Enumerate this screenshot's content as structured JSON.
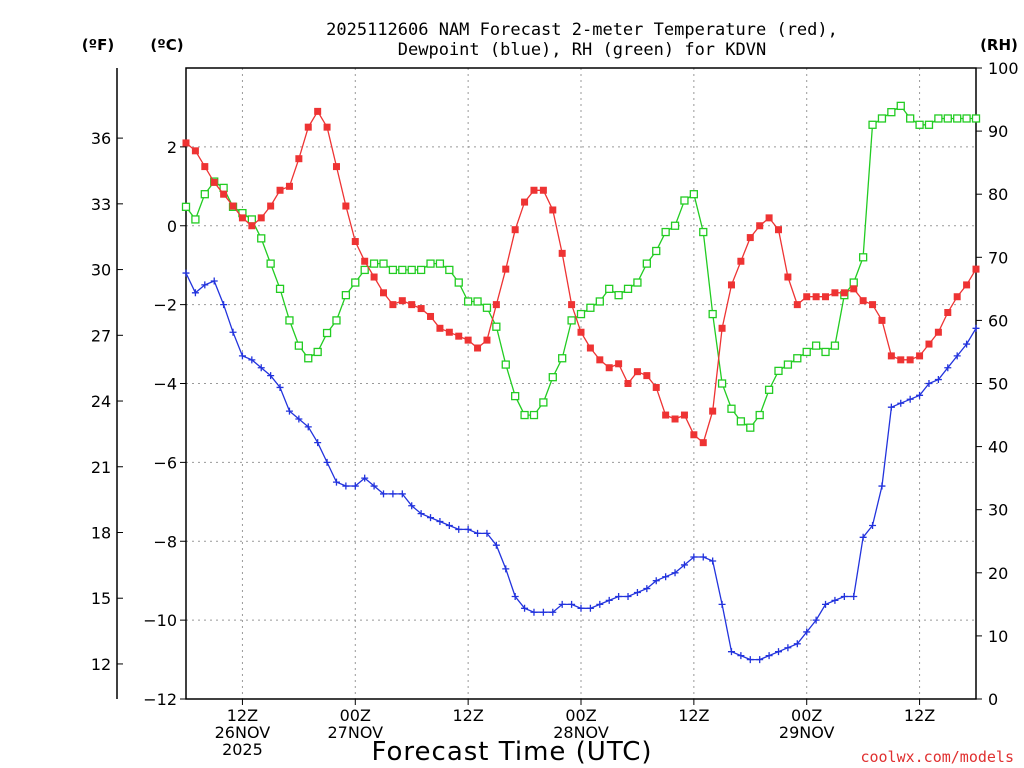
{
  "title_line1": "2025112606 NAM Forecast 2-meter Temperature (red),",
  "title_line2": "Dewpoint (blue), RH (green) for KDVN",
  "unit_f": "(ºF)",
  "unit_c": "(ºC)",
  "unit_rh": "(RH)",
  "xlabel": "Forecast Time (UTC)",
  "credit": "coolwx.com/models",
  "colors": {
    "temperature": "#ee3333",
    "dewpoint": "#2233dd",
    "rh": "#22cc22",
    "credit": "#e03030",
    "grid": "#999999"
  },
  "x_ticks": [
    {
      "hour": 6,
      "line1": "12Z",
      "line2": "26NOV",
      "line3": "2025"
    },
    {
      "hour": 18,
      "line1": "00Z",
      "line2": "27NOV",
      "line3": ""
    },
    {
      "hour": 30,
      "line1": "12Z",
      "line2": "",
      "line3": ""
    },
    {
      "hour": 42,
      "line1": "00Z",
      "line2": "28NOV",
      "line3": ""
    },
    {
      "hour": 54,
      "line1": "12Z",
      "line2": "",
      "line3": ""
    },
    {
      "hour": 66,
      "line1": "00Z",
      "line2": "29NOV",
      "line3": ""
    },
    {
      "hour": 78,
      "line1": "12Z",
      "line2": "",
      "line3": ""
    }
  ],
  "chart_data": {
    "type": "line",
    "x_label": "Forecast hour (0 = 06Z 26NOV 2025)",
    "x": [
      0,
      1,
      2,
      3,
      4,
      5,
      6,
      7,
      8,
      9,
      10,
      11,
      12,
      13,
      14,
      15,
      16,
      17,
      18,
      19,
      20,
      21,
      22,
      23,
      24,
      25,
      26,
      27,
      28,
      29,
      30,
      31,
      32,
      33,
      34,
      35,
      36,
      37,
      38,
      39,
      40,
      41,
      42,
      43,
      44,
      45,
      46,
      47,
      48,
      49,
      50,
      51,
      52,
      53,
      54,
      55,
      56,
      57,
      58,
      59,
      60,
      61,
      62,
      63,
      64,
      65,
      66,
      67,
      68,
      69,
      70,
      71,
      72,
      73,
      74,
      75,
      76,
      77,
      78,
      79,
      80,
      81,
      82,
      83,
      84
    ],
    "xlim": [
      0,
      84
    ],
    "temp_ylim_c": [
      -12,
      4
    ],
    "temp_yticks_c": [
      -12,
      -10,
      -8,
      -6,
      -4,
      -2,
      0,
      2
    ],
    "temp_yticks_f": [
      12,
      15,
      18,
      21,
      24,
      27,
      30,
      33,
      36
    ],
    "rh_ylim": [
      0,
      100
    ],
    "rh_yticks": [
      0,
      10,
      20,
      30,
      40,
      50,
      60,
      70,
      80,
      90,
      100
    ],
    "grid": true,
    "series": [
      {
        "name": "Temperature",
        "unit": "°C",
        "axis": "left",
        "marker": "filled-square",
        "values": [
          2.1,
          1.9,
          1.5,
          1.1,
          0.8,
          0.5,
          0.2,
          0.0,
          0.2,
          0.5,
          0.9,
          1.0,
          1.7,
          2.5,
          2.9,
          2.5,
          1.5,
          0.5,
          -0.4,
          -0.9,
          -1.3,
          -1.7,
          -2.0,
          -1.9,
          -2.0,
          -2.1,
          -2.3,
          -2.6,
          -2.7,
          -2.8,
          -2.9,
          -3.1,
          -2.9,
          -2.0,
          -1.1,
          -0.1,
          0.6,
          0.9,
          0.9,
          0.4,
          -0.7,
          -2.0,
          -2.7,
          -3.1,
          -3.4,
          -3.6,
          -3.5,
          -4.0,
          -3.7,
          -3.8,
          -4.1,
          -4.8,
          -4.9,
          -4.8,
          -5.3,
          -5.5,
          -4.7,
          -2.6,
          -1.5,
          -0.9,
          -0.3,
          0.0,
          0.2,
          -0.1,
          -1.3,
          -2.0,
          -1.8,
          -1.8,
          -1.8,
          -1.7,
          -1.7,
          -1.6,
          -1.9,
          -2.0,
          -2.4,
          -3.3,
          -3.4,
          -3.4,
          -3.3,
          -3.0,
          -2.7,
          -2.2,
          -1.8,
          -1.5,
          -1.1
        ]
      },
      {
        "name": "Dewpoint",
        "unit": "°C",
        "axis": "left",
        "marker": "plus",
        "values": [
          -1.2,
          -1.7,
          -1.5,
          -1.4,
          -2.0,
          -2.7,
          -3.3,
          -3.4,
          -3.6,
          -3.8,
          -4.1,
          -4.7,
          -4.9,
          -5.1,
          -5.5,
          -6.0,
          -6.5,
          -6.6,
          -6.6,
          -6.4,
          -6.6,
          -6.8,
          -6.8,
          -6.8,
          -7.1,
          -7.3,
          -7.4,
          -7.5,
          -7.6,
          -7.7,
          -7.7,
          -7.8,
          -7.8,
          -8.1,
          -8.7,
          -9.4,
          -9.7,
          -9.8,
          -9.8,
          -9.8,
          -9.6,
          -9.6,
          -9.7,
          -9.7,
          -9.6,
          -9.5,
          -9.4,
          -9.4,
          -9.3,
          -9.2,
          -9.0,
          -8.9,
          -8.8,
          -8.6,
          -8.4,
          -8.4,
          -8.5,
          -9.6,
          -10.8,
          -10.9,
          -11.0,
          -11.0,
          -10.9,
          -10.8,
          -10.7,
          -10.6,
          -10.3,
          -10.0,
          -9.6,
          -9.5,
          -9.4,
          -9.4,
          -7.9,
          -7.6,
          -6.6,
          -4.6,
          -4.5,
          -4.4,
          -4.3,
          -4.0,
          -3.9,
          -3.6,
          -3.3,
          -3.0,
          -2.6
        ]
      },
      {
        "name": "RH",
        "unit": "%",
        "axis": "right",
        "marker": "open-square",
        "values": [
          78,
          76,
          80,
          82,
          81,
          78,
          77,
          76,
          73,
          69,
          65,
          60,
          56,
          54,
          55,
          58,
          60,
          64,
          66,
          68,
          69,
          69,
          68,
          68,
          68,
          68,
          69,
          69,
          68,
          66,
          63,
          63,
          62,
          59,
          53,
          48,
          45,
          45,
          47,
          51,
          54,
          60,
          61,
          62,
          63,
          65,
          64,
          65,
          66,
          69,
          71,
          74,
          75,
          79,
          80,
          74,
          61,
          50,
          46,
          44,
          43,
          45,
          49,
          52,
          53,
          54,
          55,
          56,
          55,
          56,
          64,
          66,
          70,
          91,
          92,
          93,
          94,
          92,
          91,
          91,
          92,
          92,
          92,
          92,
          92
        ]
      }
    ]
  }
}
